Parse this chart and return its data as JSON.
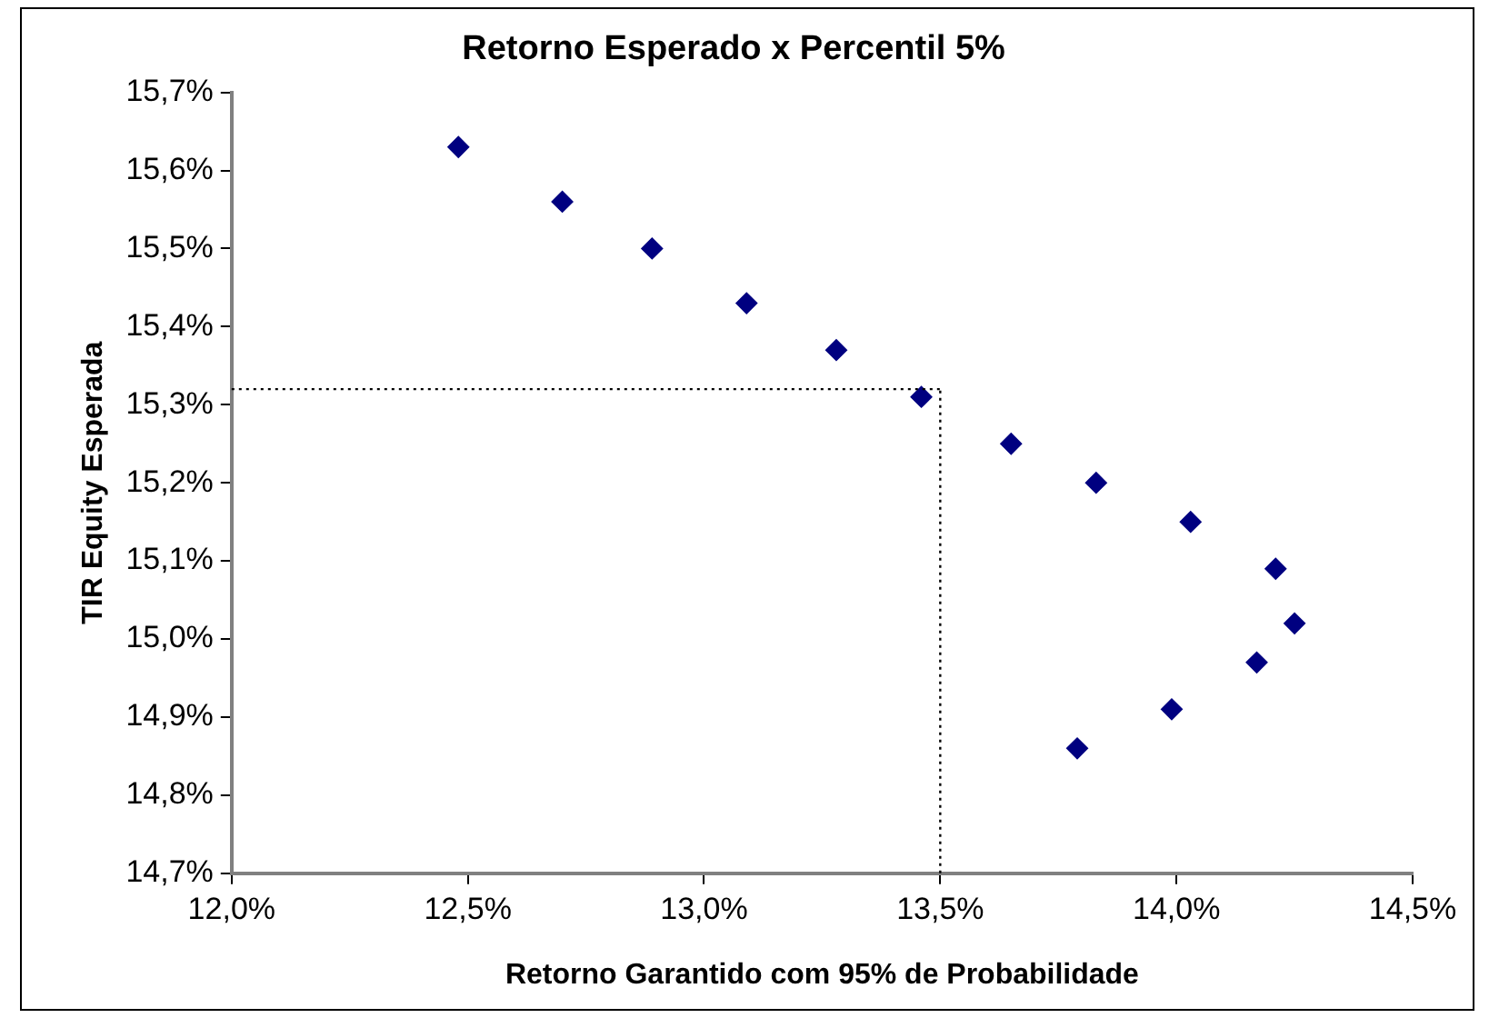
{
  "chart_data": {
    "type": "scatter",
    "title": "Retorno Esperado x Percentil 5%",
    "xlabel": "Retorno Garantido com 95% de Probabilidade",
    "ylabel": "TIR Equity Esperada",
    "x": [
      12.48,
      12.7,
      12.89,
      13.09,
      13.28,
      13.46,
      13.65,
      13.83,
      14.03,
      14.21,
      14.25,
      14.17,
      13.99,
      13.79
    ],
    "series": [
      {
        "color": "#000080",
        "values": [
          15.63,
          15.56,
          15.5,
          15.43,
          15.37,
          15.31,
          15.25,
          15.2,
          15.15,
          15.09,
          15.02,
          14.97,
          14.91,
          14.86
        ]
      }
    ],
    "marker": "diamond",
    "grid": false,
    "legend": false,
    "xlim": [
      12.0,
      14.5
    ],
    "xticks": [
      {
        "value": 12.0,
        "label": "12,0%"
      },
      {
        "value": 12.5,
        "label": "12,5%"
      },
      {
        "value": 13.0,
        "label": "13,0%"
      },
      {
        "value": 13.5,
        "label": "13,5%"
      },
      {
        "value": 14.0,
        "label": "14,0%"
      },
      {
        "value": 14.5,
        "label": "14,5%"
      }
    ],
    "ylim": [
      14.7,
      15.7
    ],
    "yticks": [
      {
        "value": 14.7,
        "label": "14,7%"
      },
      {
        "value": 14.8,
        "label": "14,8%"
      },
      {
        "value": 14.9,
        "label": "14,9%"
      },
      {
        "value": 15.0,
        "label": "15,0%"
      },
      {
        "value": 15.1,
        "label": "15,1%"
      },
      {
        "value": 15.2,
        "label": "15,2%"
      },
      {
        "value": 15.3,
        "label": "15,3%"
      },
      {
        "value": 15.4,
        "label": "15,4%"
      },
      {
        "value": 15.5,
        "label": "15,5%"
      },
      {
        "value": 15.6,
        "label": "15,6%"
      },
      {
        "value": 15.7,
        "label": "15,7%"
      }
    ],
    "ref_lines": [
      {
        "axis": "x",
        "value": 13.5,
        "color": "#000000",
        "line_style": "dotted"
      },
      {
        "axis": "y",
        "value": 15.32,
        "color": "#000000",
        "line_style": "dotted"
      }
    ]
  }
}
